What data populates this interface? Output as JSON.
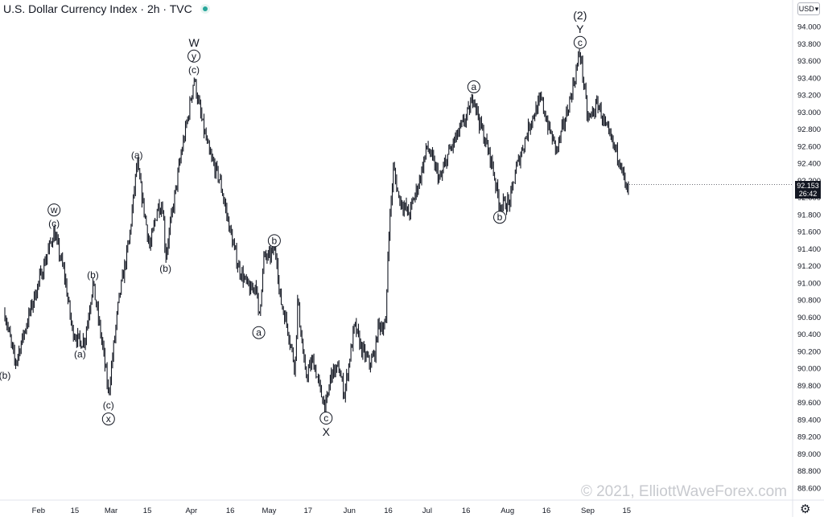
{
  "header": {
    "title": "U.S. Dollar Currency Index · 2h · TVC"
  },
  "currency_button": {
    "label": "USD",
    "icon": "chevron-down-icon"
  },
  "price_tag": {
    "price": "92.153",
    "countdown": "26:42"
  },
  "settings_icon": "gear-icon",
  "watermark": "© 2021, ElliottWaveForex.com",
  "colors": {
    "candle": "#131722",
    "grid": "#f0f3fa",
    "axis_text": "#131722",
    "watermark": "#c8cacf",
    "last_price_bg": "#131722"
  },
  "chart_data": {
    "type": "line",
    "title": "U.S. Dollar Currency Index · 2h · TVC",
    "x_unit": "trading days (2h candles)",
    "y_ticks": [
      "94.000",
      "93.800",
      "93.600",
      "93.400",
      "93.200",
      "93.000",
      "92.800",
      "92.600",
      "92.400",
      "92.200",
      "92.000",
      "91.800",
      "91.600",
      "91.400",
      "91.200",
      "91.000",
      "90.800",
      "90.600",
      "90.400",
      "90.200",
      "90.000",
      "89.800",
      "89.600",
      "89.400",
      "89.200",
      "89.000",
      "88.800",
      "88.600"
    ],
    "ylim": [
      88.5,
      94.2
    ],
    "x_ticks": [
      "Feb",
      "15",
      "Mar",
      "15",
      "Apr",
      "16",
      "May",
      "17",
      "Jun",
      "16",
      "Jul",
      "16",
      "Aug",
      "16",
      "Sep",
      "15"
    ],
    "x_tick_days": [
      0,
      14,
      28,
      42,
      59,
      74,
      89,
      104,
      120,
      135,
      150,
      165,
      181,
      196,
      212,
      227
    ],
    "series": [
      {
        "values": [
          [
            -13,
            90.65
          ],
          [
            -9,
            90.05
          ],
          [
            -2,
            90.8
          ],
          [
            3,
            91.3
          ],
          [
            6,
            91.6
          ],
          [
            10,
            91.1
          ],
          [
            13,
            90.45
          ],
          [
            16,
            90.3
          ],
          [
            18,
            90.35
          ],
          [
            21,
            91.0
          ],
          [
            23,
            90.6
          ],
          [
            25,
            90.2
          ],
          [
            27,
            89.7
          ],
          [
            31,
            90.8
          ],
          [
            35,
            91.5
          ],
          [
            38,
            92.4
          ],
          [
            40,
            92.0
          ],
          [
            43,
            91.4
          ],
          [
            46,
            91.9
          ],
          [
            48,
            91.9
          ],
          [
            49,
            91.3
          ],
          [
            51,
            91.7
          ],
          [
            55,
            92.5
          ],
          [
            58,
            93.0
          ],
          [
            60,
            93.4
          ],
          [
            63,
            92.9
          ],
          [
            66,
            92.5
          ],
          [
            70,
            92.2
          ],
          [
            74,
            91.6
          ],
          [
            77,
            91.2
          ],
          [
            80,
            91.0
          ],
          [
            82,
            90.9
          ],
          [
            84,
            91.0
          ],
          [
            85,
            90.55
          ],
          [
            87,
            91.3
          ],
          [
            89,
            91.3
          ],
          [
            91,
            91.4
          ],
          [
            92,
            91.3
          ],
          [
            93,
            90.85
          ],
          [
            96,
            90.5
          ],
          [
            99,
            90.0
          ],
          [
            100,
            90.8
          ],
          [
            103,
            89.9
          ],
          [
            106,
            90.1
          ],
          [
            109,
            89.7
          ],
          [
            111,
            89.55
          ],
          [
            113,
            89.95
          ],
          [
            116,
            90.0
          ],
          [
            118,
            89.7
          ],
          [
            120,
            90.1
          ],
          [
            122,
            90.5
          ],
          [
            125,
            90.2
          ],
          [
            128,
            90.05
          ],
          [
            130,
            90.2
          ],
          [
            131,
            90.5
          ],
          [
            134,
            90.5
          ],
          [
            135,
            91.5
          ],
          [
            137,
            92.35
          ],
          [
            139,
            92.0
          ],
          [
            143,
            91.8
          ],
          [
            147,
            92.2
          ],
          [
            150,
            92.6
          ],
          [
            155,
            92.2
          ],
          [
            158,
            92.5
          ],
          [
            162,
            92.75
          ],
          [
            166,
            93.0
          ],
          [
            168,
            93.2
          ],
          [
            170,
            92.9
          ],
          [
            173,
            92.6
          ],
          [
            175,
            92.4
          ],
          [
            178,
            91.9
          ],
          [
            182,
            91.95
          ],
          [
            184,
            92.3
          ],
          [
            187,
            92.6
          ],
          [
            190,
            92.9
          ],
          [
            194,
            93.15
          ],
          [
            197,
            92.8
          ],
          [
            200,
            92.55
          ],
          [
            204,
            93.0
          ],
          [
            207,
            93.4
          ],
          [
            209,
            93.72
          ],
          [
            212,
            92.9
          ],
          [
            216,
            93.1
          ],
          [
            219,
            92.8
          ],
          [
            222,
            92.6
          ],
          [
            225,
            92.4
          ],
          [
            226,
            92.2
          ],
          [
            227,
            92.05
          ],
          [
            228,
            92.15
          ]
        ]
      }
    ],
    "last_price": 92.153,
    "grid": false,
    "annotations": [
      {
        "day": -13,
        "price": 90.05,
        "labels": [
          "(b)"
        ],
        "side": "below"
      },
      {
        "day": 6,
        "price": 91.6,
        "labels": [
          "w",
          "(c)"
        ],
        "circled": [
          true,
          false
        ],
        "side": "above"
      },
      {
        "day": 16,
        "price": 90.3,
        "labels": [
          "(a)"
        ],
        "side": "below"
      },
      {
        "day": 21,
        "price": 91.0,
        "labels": [
          "(b)"
        ],
        "side": "above"
      },
      {
        "day": 27,
        "price": 89.7,
        "labels": [
          "(c)",
          "x"
        ],
        "circled": [
          false,
          true
        ],
        "side": "below"
      },
      {
        "day": 38,
        "price": 92.4,
        "labels": [
          "(a)"
        ],
        "side": "above"
      },
      {
        "day": 49,
        "price": 91.3,
        "labels": [
          "(b)"
        ],
        "side": "below"
      },
      {
        "day": 60,
        "price": 93.4,
        "labels": [
          "W",
          "y",
          "(c)"
        ],
        "circled": [
          false,
          true,
          false
        ],
        "side": "above"
      },
      {
        "day": 85,
        "price": 90.55,
        "labels": [
          "a"
        ],
        "circled": [
          true
        ],
        "side": "below"
      },
      {
        "day": 91,
        "price": 91.4,
        "labels": [
          "b"
        ],
        "circled": [
          true
        ],
        "side": "above"
      },
      {
        "day": 111,
        "price": 89.55,
        "labels": [
          "c",
          "X"
        ],
        "circled": [
          true,
          false
        ],
        "side": "below"
      },
      {
        "day": 168,
        "price": 93.2,
        "labels": [
          "a"
        ],
        "circled": [
          true
        ],
        "side": "above"
      },
      {
        "day": 178,
        "price": 91.9,
        "labels": [
          "b"
        ],
        "circled": [
          true
        ],
        "side": "below"
      },
      {
        "day": 209,
        "price": 93.72,
        "labels": [
          "(2)",
          "Y",
          "c"
        ],
        "circled": [
          false,
          false,
          true
        ],
        "side": "above"
      }
    ]
  }
}
